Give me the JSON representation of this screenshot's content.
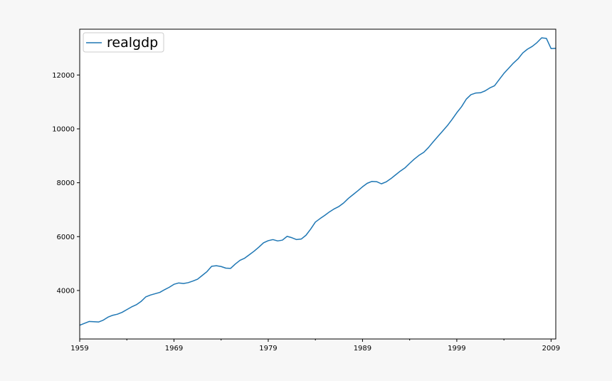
{
  "chart_data": {
    "type": "line",
    "title": "",
    "xlabel": "",
    "ylabel": "",
    "x_range": [
      1959,
      2009.5
    ],
    "ylim": [
      2200,
      13700
    ],
    "x_tick_labels": [
      {
        "value": 1959,
        "label": "1959"
      },
      {
        "value": 1969,
        "label": "1969"
      },
      {
        "value": 1979,
        "label": "1979"
      },
      {
        "value": 1989,
        "label": "1989"
      },
      {
        "value": 1999,
        "label": "1999"
      },
      {
        "value": 2009,
        "label": "2009"
      }
    ],
    "x_minor_ticks": [
      1964,
      1974,
      1984,
      1994,
      2004
    ],
    "y_ticks": [
      4000,
      6000,
      8000,
      10000,
      12000
    ],
    "y_tick_labels": [
      "4000",
      "6000",
      "8000",
      "10000",
      "12000"
    ],
    "grid": false,
    "legend": {
      "placement": "upper-left",
      "entries": [
        "realgdp"
      ]
    },
    "line_color": "#1f77b4",
    "series": [
      {
        "name": "realgdp",
        "x": [
          1959.0,
          1959.5,
          1960.0,
          1960.5,
          1961.0,
          1961.5,
          1962.0,
          1962.5,
          1963.0,
          1963.5,
          1964.0,
          1964.5,
          1965.0,
          1965.5,
          1966.0,
          1966.5,
          1967.0,
          1967.5,
          1968.0,
          1968.5,
          1969.0,
          1969.5,
          1970.0,
          1970.5,
          1971.0,
          1971.5,
          1972.0,
          1972.5,
          1973.0,
          1973.5,
          1974.0,
          1974.5,
          1975.0,
          1975.5,
          1976.0,
          1976.5,
          1977.0,
          1977.5,
          1978.0,
          1978.5,
          1979.0,
          1979.5,
          1980.0,
          1980.5,
          1981.0,
          1981.5,
          1982.0,
          1982.5,
          1983.0,
          1983.5,
          1984.0,
          1984.5,
          1985.0,
          1985.5,
          1986.0,
          1986.5,
          1987.0,
          1987.5,
          1988.0,
          1988.5,
          1989.0,
          1989.5,
          1990.0,
          1990.5,
          1991.0,
          1991.5,
          1992.0,
          1992.5,
          1993.0,
          1993.5,
          1994.0,
          1994.5,
          1995.0,
          1995.5,
          1996.0,
          1996.5,
          1997.0,
          1997.5,
          1998.0,
          1998.5,
          1999.0,
          1999.5,
          2000.0,
          2000.5,
          2001.0,
          2001.5,
          2002.0,
          2002.5,
          2003.0,
          2003.5,
          2004.0,
          2004.5,
          2005.0,
          2005.5,
          2006.0,
          2006.5,
          2007.0,
          2007.5,
          2008.0,
          2008.5,
          2009.0,
          2009.5
        ],
        "values": [
          2710,
          2780,
          2850,
          2840,
          2830,
          2900,
          3010,
          3080,
          3120,
          3190,
          3290,
          3390,
          3470,
          3590,
          3760,
          3830,
          3880,
          3930,
          4030,
          4120,
          4230,
          4280,
          4260,
          4290,
          4350,
          4420,
          4560,
          4700,
          4900,
          4920,
          4890,
          4830,
          4820,
          4980,
          5120,
          5200,
          5330,
          5460,
          5610,
          5770,
          5850,
          5890,
          5840,
          5870,
          6010,
          5960,
          5890,
          5910,
          6050,
          6280,
          6540,
          6670,
          6790,
          6920,
          7030,
          7120,
          7250,
          7420,
          7560,
          7700,
          7850,
          7980,
          8050,
          8040,
          7960,
          8030,
          8150,
          8290,
          8430,
          8550,
          8720,
          8880,
          9020,
          9130,
          9310,
          9520,
          9720,
          9920,
          10120,
          10350,
          10600,
          10820,
          11100,
          11270,
          11330,
          11340,
          11410,
          11520,
          11600,
          11830,
          12060,
          12250,
          12440,
          12600,
          12820,
          12960,
          13060,
          13200,
          13380,
          13360,
          12980,
          12990
        ]
      }
    ]
  }
}
